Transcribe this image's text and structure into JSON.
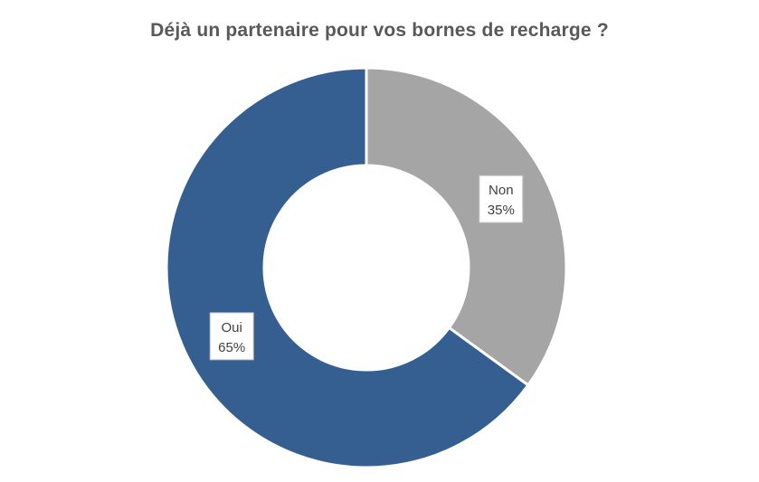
{
  "chart_data": {
    "type": "pie",
    "title": "Déjà un partenaire pour vos bornes de recharge ?",
    "donut": true,
    "categories": [
      "Non",
      "Oui"
    ],
    "values": [
      35,
      65
    ],
    "value_labels": [
      "35%",
      "65%"
    ],
    "colors": [
      "#A5A5A5",
      "#365F91"
    ],
    "start": "12 o'clock",
    "direction": "clockwise",
    "legend": "none"
  }
}
